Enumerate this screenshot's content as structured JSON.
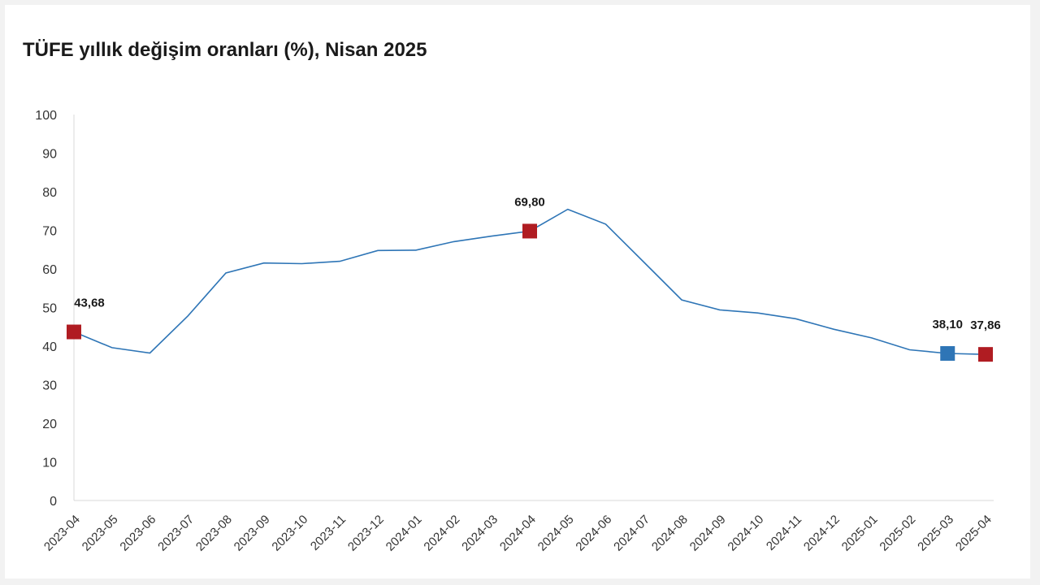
{
  "chart_data": {
    "type": "line",
    "title": "TÜFE yıllık değişim oranları (%), Nisan 2025",
    "xlabel": "",
    "ylabel": "",
    "ylim": [
      0,
      100
    ],
    "yticks": [
      0,
      10,
      20,
      30,
      40,
      50,
      60,
      70,
      80,
      90,
      100
    ],
    "grid": false,
    "categories": [
      "2023-04",
      "2023-05",
      "2023-06",
      "2023-07",
      "2023-08",
      "2023-09",
      "2023-10",
      "2023-11",
      "2023-12",
      "2024-01",
      "2024-02",
      "2024-03",
      "2024-04",
      "2024-05",
      "2024-06",
      "2024-07",
      "2024-08",
      "2024-09",
      "2024-10",
      "2024-11",
      "2024-12",
      "2025-01",
      "2025-02",
      "2025-03",
      "2025-04"
    ],
    "series": [
      {
        "values": [
          43.68,
          39.59,
          38.21,
          47.83,
          58.94,
          61.53,
          61.36,
          61.98,
          64.77,
          64.86,
          67.07,
          68.5,
          69.8,
          75.45,
          71.6,
          61.78,
          51.97,
          49.38,
          48.58,
          47.09,
          44.38,
          42.12,
          39.05,
          38.1,
          37.86
        ],
        "color": "#2e75b6"
      }
    ],
    "highlights": [
      {
        "index": 0,
        "label": "43,68",
        "color": "#b01c22"
      },
      {
        "index": 12,
        "label": "69,80",
        "color": "#b01c22"
      },
      {
        "index": 23,
        "label": "38,10",
        "color": "#2e75b6"
      },
      {
        "index": 24,
        "label": "37,86",
        "color": "#b01c22"
      }
    ]
  }
}
